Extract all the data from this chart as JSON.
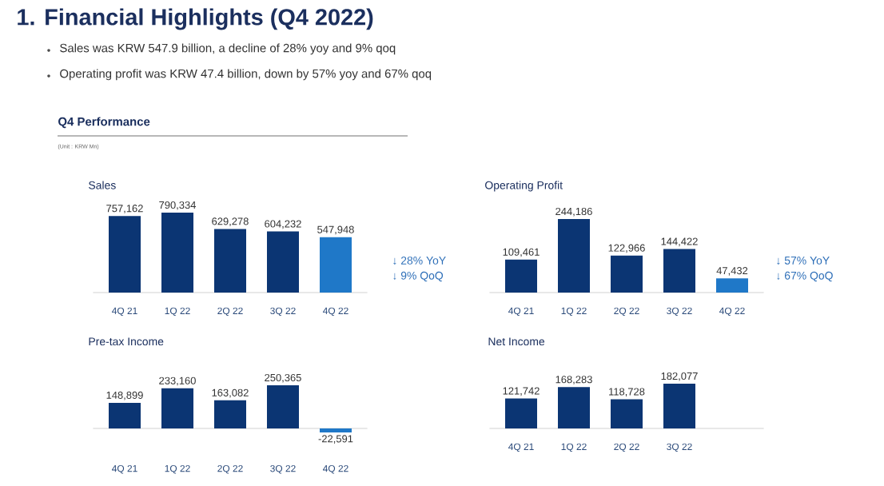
{
  "chart_data": [
    {
      "type": "bar",
      "title": "Sales",
      "categories": [
        "4Q 21",
        "1Q 22",
        "2Q 22",
        "3Q 22",
        "4Q 22"
      ],
      "values": [
        757162,
        790334,
        629278,
        604232,
        547948
      ],
      "colors": [
        "#0b3573",
        "#0b3573",
        "#0b3573",
        "#0b3573",
        "#1f78c8"
      ],
      "value_labels": [
        "757,162",
        "790,334",
        "629,278",
        "604,232",
        "547,948"
      ],
      "tick_labels": "x",
      "annotations": [
        "1. Financial Highlights (Q4 2022)",
        "Sales was KRW 547.9 billion, a decline of 28% yoy and 9% qoq",
        "Operating profit was KRW 47.4 billion, down by 57% yoy and 67% qoq",
        "Q4 Performance",
        "(Unit : KRW Mn)",
        "↓ 28% YoY",
        "↓ 9%  QoQ"
      ]
    },
    {
      "type": "bar",
      "title": "Operating Profit",
      "categories": [
        "4Q 21",
        "1Q 22",
        "2Q 22",
        "3Q 22",
        "4Q 22"
      ],
      "values": [
        109461,
        244186,
        122966,
        144422,
        47432
      ],
      "colors": [
        "#0b3573",
        "#0b3573",
        "#0b3573",
        "#0b3573",
        "#1f78c8"
      ],
      "value_labels": [
        "109,461",
        "244,186",
        "122,966",
        "144,422",
        "47,432"
      ],
      "tick_labels": "x",
      "annotations": [
        "↓ 57% YoY",
        "↓ 67% QoQ"
      ]
    },
    {
      "type": "bar",
      "title": "Pre-tax Income",
      "categories": [
        "4Q 21",
        "1Q 22",
        "2Q 22",
        "3Q 22",
        "4Q 22"
      ],
      "values": [
        148899,
        233160,
        163082,
        250365,
        -22591
      ],
      "colors": [
        "#0b3573",
        "#0b3573",
        "#0b3573",
        "#0b3573",
        "#1f78c8"
      ],
      "value_labels": [
        "148,899",
        "233,160",
        "163,082",
        "250,365",
        "-22,591"
      ],
      "tick_labels": "x"
    },
    {
      "type": "bar",
      "title": "Net Income",
      "categories": [
        "4Q 21",
        "1Q 22",
        "2Q 22",
        "3Q 22",
        null
      ],
      "values": [
        121742,
        168283,
        118728,
        182077,
        null
      ],
      "colors": [
        "#0b3573",
        "#0b3573",
        "#0b3573",
        "#0b3573",
        "#1f78c8"
      ],
      "value_labels": [
        "121,742",
        "168,283",
        "118,728",
        "182,077",
        null
      ],
      "tick_labels": "x"
    }
  ]
}
